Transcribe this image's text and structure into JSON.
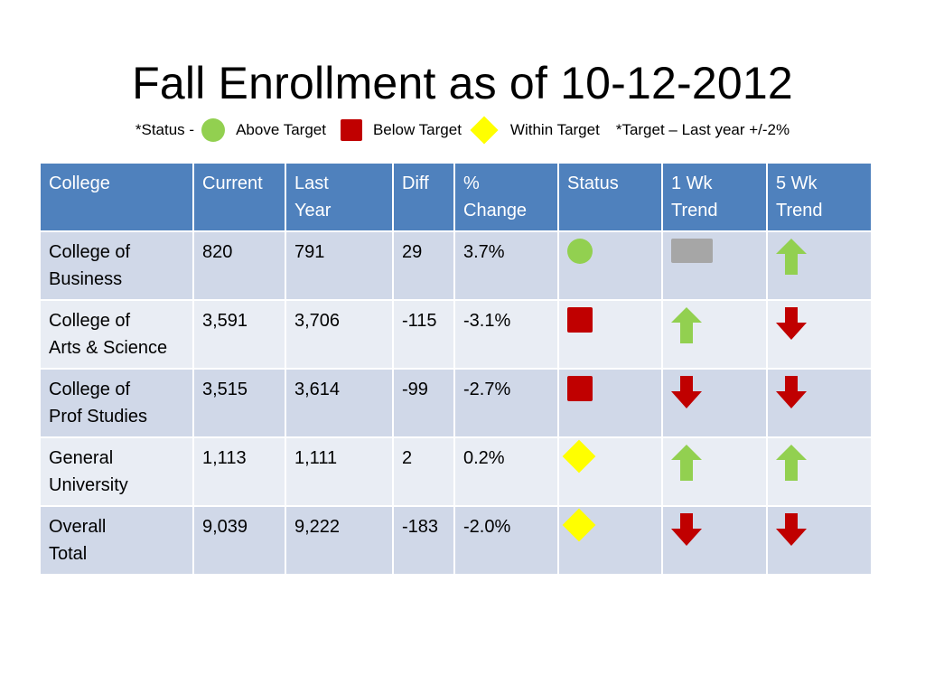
{
  "title": "Fall Enrollment as of 10-12-2012",
  "legend": {
    "prefix": "*Status -",
    "above": "Above Target",
    "below": "Below Target",
    "within": "Within Target",
    "target_note": "*Target – Last year +/-2%"
  },
  "colors": {
    "header_bg": "#4f81bd",
    "row_dark": "#d0d8e8",
    "row_light": "#e9edf4",
    "green": "#92d050",
    "red": "#c00000",
    "yellow": "#ffff00",
    "gray": "#a6a6a6"
  },
  "table": {
    "headers": [
      "College",
      "Current",
      "Last\nYear",
      "Diff",
      "%\nChange",
      "Status",
      "1 Wk\nTrend",
      "5 Wk\nTrend"
    ],
    "rows": [
      {
        "college": "College of\nBusiness",
        "current": "820",
        "last_year": "791",
        "diff": "29",
        "change": "3.7%",
        "status": "above",
        "trend_1wk": "flat",
        "trend_5wk": "up"
      },
      {
        "college": "College of\nArts & Science",
        "current": "3,591",
        "last_year": "3,706",
        "diff": "-115",
        "change": "-3.1%",
        "status": "below",
        "trend_1wk": "up",
        "trend_5wk": "down"
      },
      {
        "college": "College of\nProf Studies",
        "current": "3,515",
        "last_year": "3,614",
        "diff": "-99",
        "change": "-2.7%",
        "status": "below",
        "trend_1wk": "down",
        "trend_5wk": "down"
      },
      {
        "college": "General\nUniversity",
        "current": "1,113",
        "last_year": "1,111",
        "diff": "2",
        "change": "0.2%",
        "status": "within",
        "trend_1wk": "up",
        "trend_5wk": "up"
      },
      {
        "college": "Overall\nTotal",
        "current": "9,039",
        "last_year": "9,222",
        "diff": "-183",
        "change": "-2.0%",
        "status": "within",
        "trend_1wk": "down",
        "trend_5wk": "down"
      }
    ]
  }
}
